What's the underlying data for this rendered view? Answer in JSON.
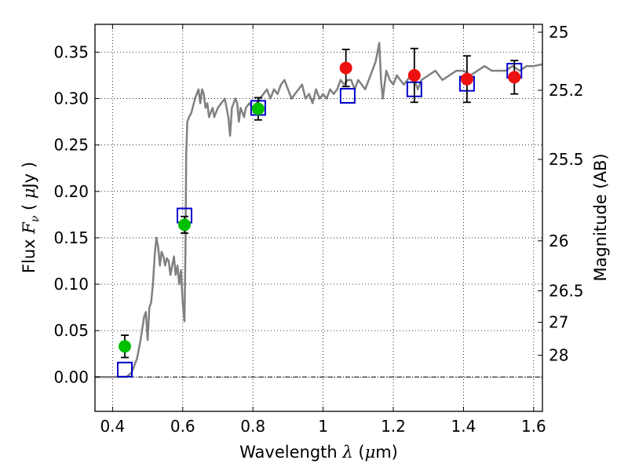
{
  "chart_data": {
    "type": "scatter",
    "xlabel": {
      "prefix": "Wavelength  ",
      "symbol": "λ",
      "unit_open": " (",
      "unit_mu": "μ",
      "unit_rest": "m)"
    },
    "ylabel": {
      "prefix": "Flux  ",
      "symbol": "F",
      "sub": "ν",
      "unit_open": "  (  ",
      "unit_mu": "μ",
      "unit_rest": "Jy )"
    },
    "y2label": "Magnitude (AB)",
    "xlim": [
      0.35,
      1.625
    ],
    "ylim": [
      -0.037,
      0.38
    ],
    "grid": true,
    "x_ticks": [
      0.4,
      0.6,
      0.8,
      1.0,
      1.2,
      1.4,
      1.6
    ],
    "x_tick_labels": [
      "0.4",
      "0.6",
      "0.8",
      "1",
      "1.2",
      "1.4",
      "1.6"
    ],
    "y_ticks": [
      0.0,
      0.05,
      0.1,
      0.15,
      0.2,
      0.25,
      0.3,
      0.35
    ],
    "y_tick_labels": [
      "0.00",
      "0.05",
      "0.10",
      "0.15",
      "0.20",
      "0.25",
      "0.30",
      "0.35"
    ],
    "y2_ticks": [
      {
        "label": "25",
        "flux": 0.3715
      },
      {
        "label": "25.2",
        "flux": 0.309
      },
      {
        "label": "25.5",
        "flux": 0.2345
      },
      {
        "label": "26",
        "flux": 0.1467
      },
      {
        "label": "26.5",
        "flux": 0.0929
      },
      {
        "label": "27",
        "flux": 0.0589
      },
      {
        "label": "28",
        "flux": 0.0234
      }
    ],
    "series": [
      {
        "kind": "line",
        "color": "#808080",
        "x": [
          0.35,
          0.44,
          0.455,
          0.47,
          0.48,
          0.49,
          0.495,
          0.5,
          0.505,
          0.51,
          0.515,
          0.52,
          0.525,
          0.53,
          0.535,
          0.54,
          0.545,
          0.55,
          0.555,
          0.56,
          0.565,
          0.57,
          0.575,
          0.58,
          0.585,
          0.59,
          0.595,
          0.6,
          0.605,
          0.608,
          0.61,
          0.613,
          0.618,
          0.625,
          0.635,
          0.645,
          0.65,
          0.655,
          0.66,
          0.665,
          0.67,
          0.675,
          0.68,
          0.685,
          0.69,
          0.695,
          0.7,
          0.71,
          0.72,
          0.73,
          0.735,
          0.74,
          0.75,
          0.755,
          0.76,
          0.765,
          0.77,
          0.775,
          0.78,
          0.79,
          0.8,
          0.81,
          0.82,
          0.83,
          0.84,
          0.85,
          0.86,
          0.87,
          0.88,
          0.89,
          0.9,
          0.91,
          0.92,
          0.93,
          0.94,
          0.95,
          0.96,
          0.97,
          0.98,
          0.99,
          1.0,
          1.01,
          1.02,
          1.03,
          1.04,
          1.05,
          1.06,
          1.07,
          1.08,
          1.09,
          1.1,
          1.12,
          1.13,
          1.14,
          1.15,
          1.16,
          1.165,
          1.17,
          1.18,
          1.19,
          1.2,
          1.21,
          1.22,
          1.23,
          1.24,
          1.25,
          1.26,
          1.27,
          1.28,
          1.3,
          1.32,
          1.34,
          1.36,
          1.38,
          1.4,
          1.42,
          1.44,
          1.46,
          1.48,
          1.5,
          1.52,
          1.54,
          1.56,
          1.58,
          1.6,
          1.625
        ],
        "y": [
          0.0,
          0.0,
          0.005,
          0.02,
          0.04,
          0.065,
          0.07,
          0.04,
          0.075,
          0.08,
          0.1,
          0.13,
          0.15,
          0.14,
          0.12,
          0.135,
          0.13,
          0.12,
          0.128,
          0.125,
          0.11,
          0.12,
          0.13,
          0.11,
          0.12,
          0.1,
          0.115,
          0.08,
          0.06,
          0.14,
          0.24,
          0.275,
          0.28,
          0.285,
          0.3,
          0.31,
          0.295,
          0.31,
          0.305,
          0.29,
          0.295,
          0.28,
          0.285,
          0.29,
          0.28,
          0.285,
          0.29,
          0.295,
          0.3,
          0.28,
          0.26,
          0.29,
          0.3,
          0.295,
          0.275,
          0.29,
          0.285,
          0.28,
          0.29,
          0.295,
          0.29,
          0.295,
          0.3,
          0.305,
          0.31,
          0.3,
          0.31,
          0.305,
          0.315,
          0.32,
          0.31,
          0.3,
          0.305,
          0.31,
          0.315,
          0.3,
          0.305,
          0.295,
          0.31,
          0.3,
          0.305,
          0.3,
          0.31,
          0.305,
          0.31,
          0.32,
          0.315,
          0.32,
          0.32,
          0.31,
          0.32,
          0.31,
          0.32,
          0.33,
          0.34,
          0.36,
          0.32,
          0.3,
          0.33,
          0.32,
          0.315,
          0.325,
          0.32,
          0.315,
          0.32,
          0.325,
          0.32,
          0.31,
          0.32,
          0.325,
          0.33,
          0.32,
          0.325,
          0.33,
          0.33,
          0.325,
          0.33,
          0.335,
          0.33,
          0.33,
          0.33,
          0.335,
          0.33,
          0.335,
          0.335,
          0.337
        ]
      },
      {
        "kind": "points",
        "marker": "open-square",
        "color": "#0000cc",
        "x": [
          0.435,
          0.605,
          0.815,
          1.07,
          1.26,
          1.41,
          1.545
        ],
        "y": [
          0.008,
          0.174,
          0.29,
          0.303,
          0.31,
          0.316,
          0.33
        ]
      },
      {
        "kind": "points",
        "marker": "filled-circle",
        "color": "#00c000",
        "x": [
          0.435,
          0.605,
          0.815
        ],
        "y": [
          0.033,
          0.164,
          0.289
        ],
        "err": [
          0.012,
          0.009,
          0.012
        ]
      },
      {
        "kind": "points",
        "marker": "filled-circle",
        "color": "#ee1111",
        "x": [
          1.065,
          1.26,
          1.41,
          1.545
        ],
        "y": [
          0.333,
          0.325,
          0.321,
          0.323
        ],
        "err": [
          0.02,
          0.029,
          0.025,
          0.018
        ]
      }
    ]
  }
}
